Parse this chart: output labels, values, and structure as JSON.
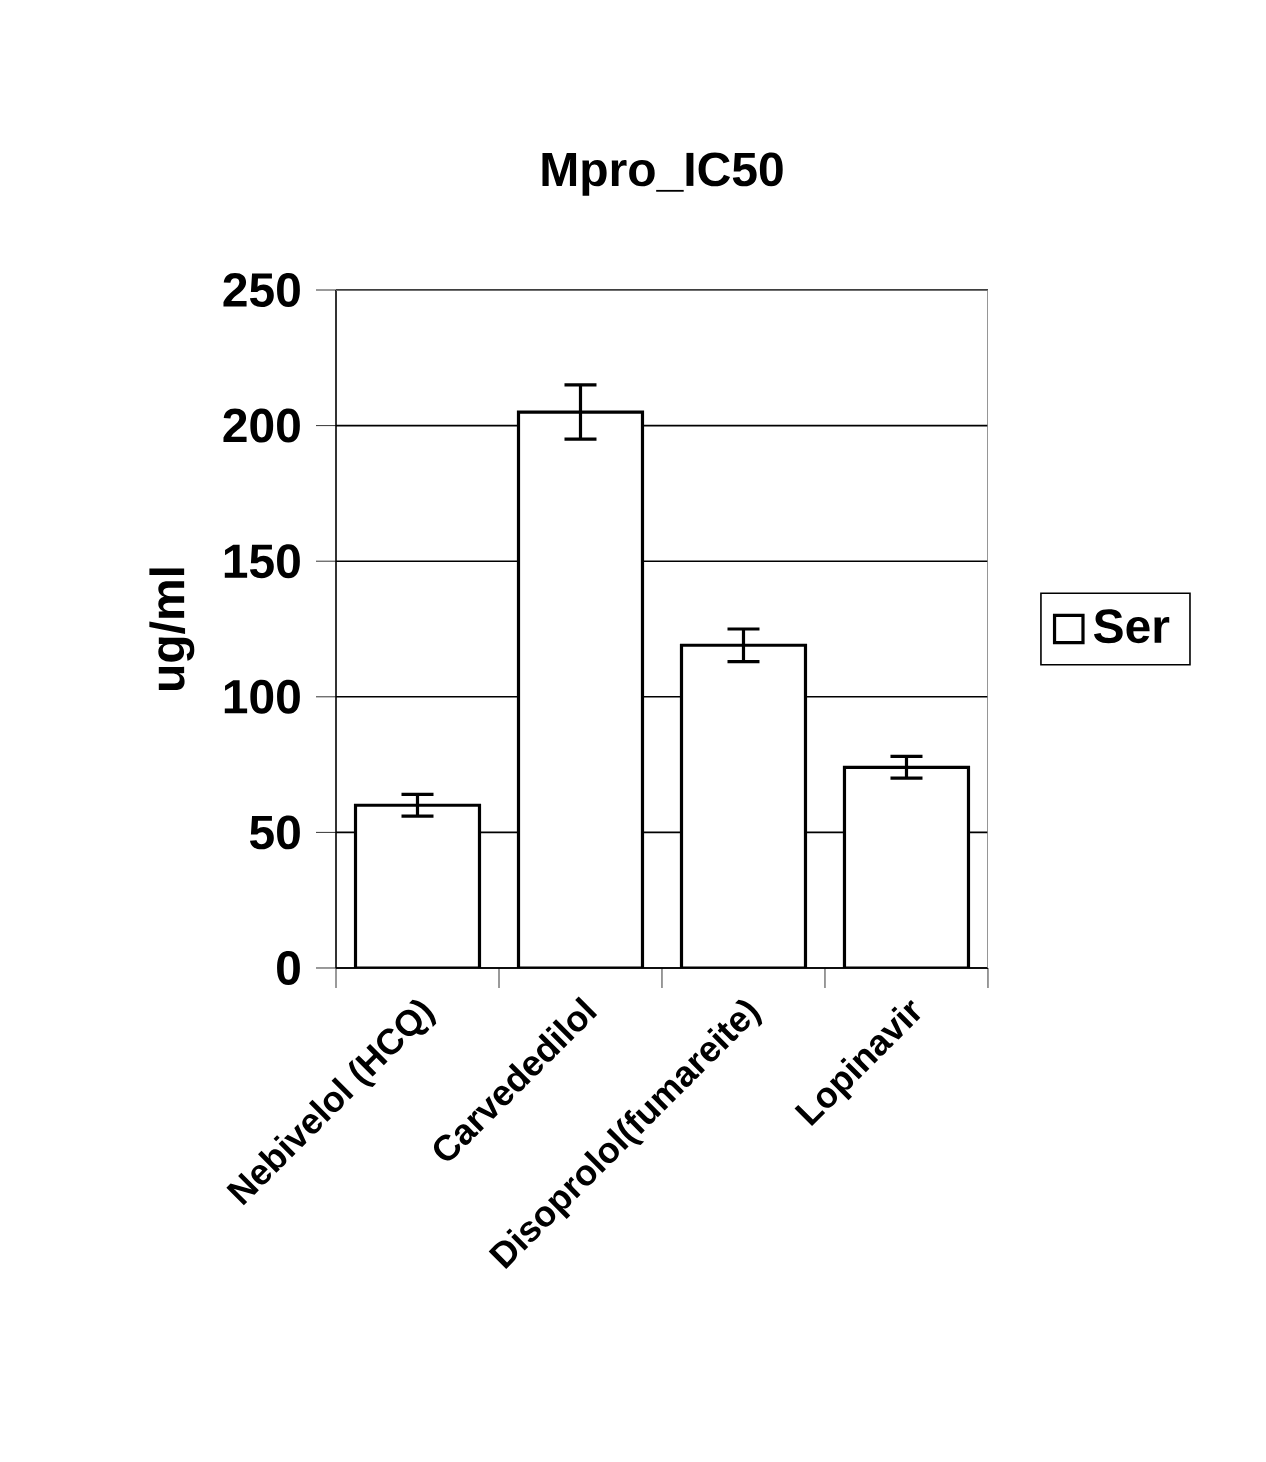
{
  "chart_data": {
    "type": "bar",
    "title": "Mpro_IC50",
    "ylabel": "ug/ml",
    "categories": [
      "Nebivelol  (HCQ)",
      "Carvededilol",
      "Disoprolol(fumareite)",
      "Lopinavir"
    ],
    "series": [
      {
        "name": "Ser",
        "color": "#000000",
        "values": [
          60,
          205,
          119,
          74
        ],
        "errors": [
          4,
          10,
          6,
          4
        ]
      }
    ],
    "ylim": [
      0,
      250
    ],
    "yticks": [
      0,
      50,
      100,
      150,
      200,
      250
    ],
    "grid": "y",
    "legend": "right"
  }
}
